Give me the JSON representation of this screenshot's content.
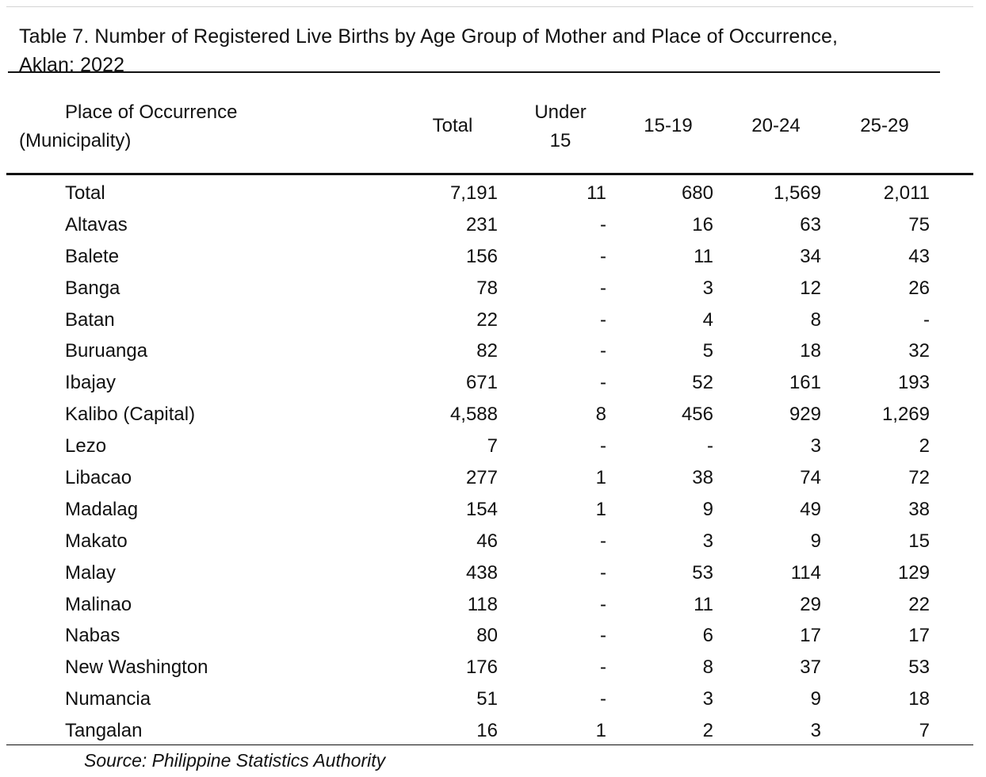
{
  "table": {
    "title_line1": "Table 7. Number of Registered Live Births by Age Group of Mother and Place of Occurrence,",
    "title_line2": "Aklan: 2022",
    "headers": {
      "place_line1": "Place of Occurrence",
      "place_line2": "(Municipality)",
      "total": "Total",
      "under15_line1": "Under",
      "under15_line2": "15",
      "age_15_19": "15-19",
      "age_20_24": "20-24",
      "age_25_29": "25-29"
    },
    "rows": [
      {
        "place": "Total",
        "total": "7,191",
        "under15": "11",
        "a15_19": "680",
        "a20_24": "1,569",
        "a25_29": "2,011"
      },
      {
        "place": "Altavas",
        "total": "231",
        "under15": "-",
        "a15_19": "16",
        "a20_24": "63",
        "a25_29": "75"
      },
      {
        "place": "Balete",
        "total": "156",
        "under15": "-",
        "a15_19": "11",
        "a20_24": "34",
        "a25_29": "43"
      },
      {
        "place": "Banga",
        "total": "78",
        "under15": "-",
        "a15_19": "3",
        "a20_24": "12",
        "a25_29": "26"
      },
      {
        "place": "Batan",
        "total": "22",
        "under15": "-",
        "a15_19": "4",
        "a20_24": "8",
        "a25_29": "-"
      },
      {
        "place": "Buruanga",
        "total": "82",
        "under15": "-",
        "a15_19": "5",
        "a20_24": "18",
        "a25_29": "32"
      },
      {
        "place": "Ibajay",
        "total": "671",
        "under15": "-",
        "a15_19": "52",
        "a20_24": "161",
        "a25_29": "193"
      },
      {
        "place": "Kalibo (Capital)",
        "total": "4,588",
        "under15": "8",
        "a15_19": "456",
        "a20_24": "929",
        "a25_29": "1,269"
      },
      {
        "place": "Lezo",
        "total": "7",
        "under15": "-",
        "a15_19": "-",
        "a20_24": "3",
        "a25_29": "2"
      },
      {
        "place": "Libacao",
        "total": "277",
        "under15": "1",
        "a15_19": "38",
        "a20_24": "74",
        "a25_29": "72"
      },
      {
        "place": "Madalag",
        "total": "154",
        "under15": "1",
        "a15_19": "9",
        "a20_24": "49",
        "a25_29": "38"
      },
      {
        "place": "Makato",
        "total": "46",
        "under15": "-",
        "a15_19": "3",
        "a20_24": "9",
        "a25_29": "15"
      },
      {
        "place": "Malay",
        "total": "438",
        "under15": "-",
        "a15_19": "53",
        "a20_24": "114",
        "a25_29": "129"
      },
      {
        "place": "Malinao",
        "total": "118",
        "under15": "-",
        "a15_19": "11",
        "a20_24": "29",
        "a25_29": "22"
      },
      {
        "place": "Nabas",
        "total": "80",
        "under15": "-",
        "a15_19": "6",
        "a20_24": "17",
        "a25_29": "17"
      },
      {
        "place": "New Washington",
        "total": "176",
        "under15": "-",
        "a15_19": "8",
        "a20_24": "37",
        "a25_29": "53"
      },
      {
        "place": "Numancia",
        "total": "51",
        "under15": "-",
        "a15_19": "3",
        "a20_24": "9",
        "a25_29": "18"
      },
      {
        "place": "Tangalan",
        "total": "16",
        "under15": "1",
        "a15_19": "2",
        "a20_24": "3",
        "a25_29": "7"
      }
    ],
    "source": "Source: Philippine Statistics Authority"
  }
}
